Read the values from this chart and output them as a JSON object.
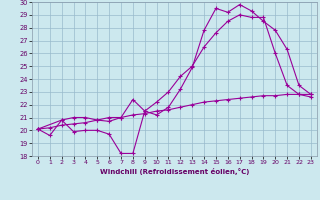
{
  "xlabel": "Windchill (Refroidissement éolien,°C)",
  "bg_color": "#cce8ee",
  "line_color": "#990099",
  "grid_color": "#99bbcc",
  "xlim": [
    -0.5,
    23.5
  ],
  "ylim": [
    18,
    30
  ],
  "yticks": [
    18,
    19,
    20,
    21,
    22,
    23,
    24,
    25,
    26,
    27,
    28,
    29,
    30
  ],
  "xticks": [
    0,
    1,
    2,
    3,
    4,
    5,
    6,
    7,
    8,
    9,
    10,
    11,
    12,
    13,
    14,
    15,
    16,
    17,
    18,
    19,
    20,
    21,
    22,
    23
  ],
  "line1_x": [
    0,
    1,
    2,
    3,
    4,
    5,
    6,
    7,
    8,
    9,
    10,
    11,
    12,
    13,
    14,
    15,
    16,
    17,
    18,
    19,
    20,
    21,
    22,
    23
  ],
  "line1_y": [
    20.1,
    19.6,
    20.8,
    19.9,
    20.0,
    20.0,
    19.7,
    18.2,
    18.2,
    21.5,
    21.2,
    21.8,
    23.2,
    24.9,
    27.8,
    29.5,
    29.2,
    29.8,
    29.3,
    28.5,
    27.8,
    26.3,
    23.5,
    22.8
  ],
  "line2_x": [
    0,
    2,
    3,
    4,
    5,
    6,
    7,
    8,
    9,
    10,
    11,
    12,
    13,
    14,
    15,
    16,
    17,
    18,
    19,
    20,
    21,
    22,
    23
  ],
  "line2_y": [
    20.1,
    20.8,
    21.0,
    21.0,
    20.8,
    20.7,
    21.0,
    22.4,
    21.5,
    22.2,
    23.0,
    24.2,
    25.0,
    26.5,
    27.6,
    28.5,
    29.0,
    28.8,
    28.8,
    26.0,
    23.5,
    22.8,
    22.6
  ],
  "line3_x": [
    0,
    1,
    2,
    3,
    4,
    5,
    6,
    7,
    8,
    9,
    10,
    11,
    12,
    13,
    14,
    15,
    16,
    17,
    18,
    19,
    20,
    21,
    22,
    23
  ],
  "line3_y": [
    20.1,
    20.2,
    20.4,
    20.5,
    20.6,
    20.8,
    21.0,
    21.0,
    21.2,
    21.3,
    21.5,
    21.6,
    21.8,
    22.0,
    22.2,
    22.3,
    22.4,
    22.5,
    22.6,
    22.7,
    22.7,
    22.8,
    22.8,
    22.8
  ]
}
